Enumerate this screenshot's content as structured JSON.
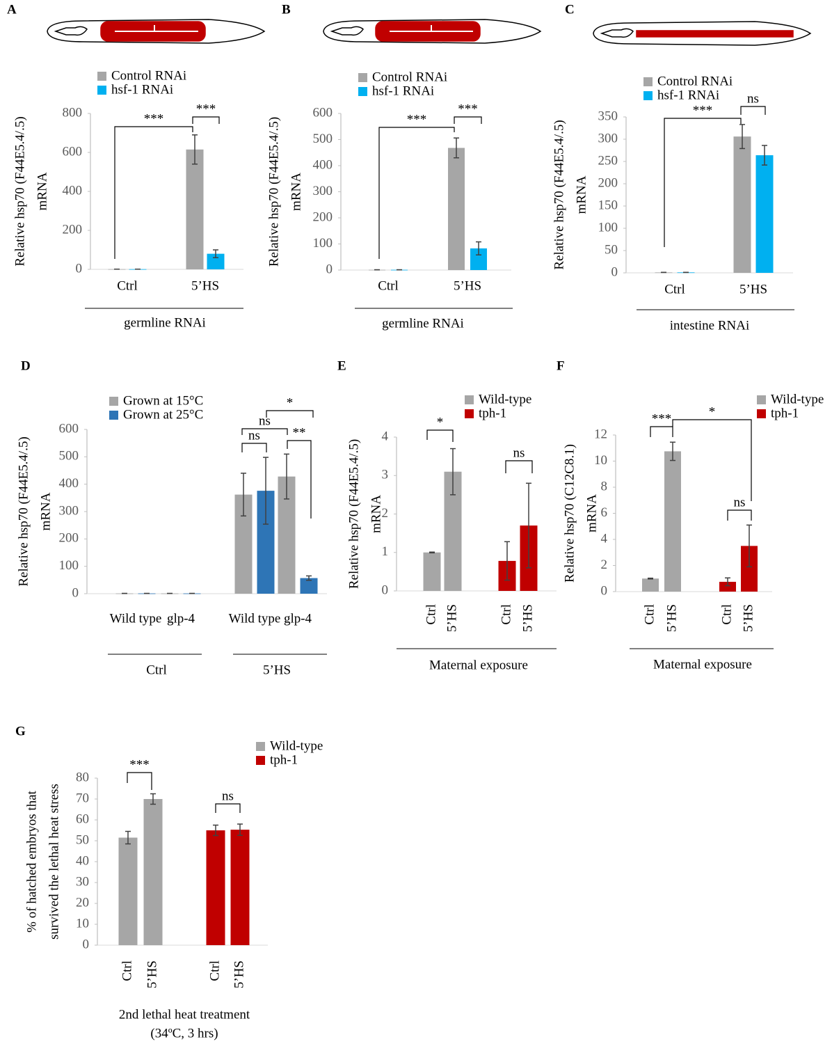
{
  "chart_data": [
    {
      "type": "bar",
      "panel": "A",
      "ylabel": [
        "Relative hsp70 (F44E5.4/.5)",
        "mRNA"
      ],
      "categories": [
        "Ctrl",
        "5’HS"
      ],
      "series": [
        {
          "name": "Control RNAi",
          "color": "#a6a6a6",
          "values": [
            1,
            615
          ],
          "errors": [
            0,
            75
          ]
        },
        {
          "name": "hsf-1 RNAi",
          "color": "#00b0f0",
          "values": [
            1,
            80
          ],
          "errors": [
            0,
            20
          ]
        }
      ],
      "ylim": [
        0,
        800
      ],
      "yticks": [
        0,
        200,
        400,
        600,
        800
      ],
      "annotations": [
        "***",
        "***"
      ],
      "groups": [
        "germline RNAi"
      ]
    },
    {
      "type": "bar",
      "panel": "B",
      "ylabel": [
        "Relative hsp70 (F44E5.4/.5)",
        "mRNA"
      ],
      "categories": [
        "Ctrl",
        "5’HS"
      ],
      "series": [
        {
          "name": "Control RNAi",
          "color": "#a6a6a6",
          "values": [
            1,
            468
          ],
          "errors": [
            0,
            38
          ]
        },
        {
          "name": "hsf-1 RNAi",
          "color": "#00b0f0",
          "values": [
            1,
            83
          ],
          "errors": [
            0,
            25
          ]
        }
      ],
      "ylim": [
        0,
        600
      ],
      "yticks": [
        0,
        100,
        200,
        300,
        400,
        500,
        600
      ],
      "annotations": [
        "***",
        "***"
      ],
      "groups": [
        "germline RNAi"
      ]
    },
    {
      "type": "bar",
      "panel": "C",
      "ylabel": [
        "Relative hsp70 (F44E5.4/.5)",
        "mRNA"
      ],
      "categories": [
        "Ctrl",
        "5’HS"
      ],
      "series": [
        {
          "name": "Control RNAi",
          "color": "#a6a6a6",
          "values": [
            1,
            306
          ],
          "errors": [
            0,
            27
          ]
        },
        {
          "name": "hsf-1 RNAi",
          "color": "#00b0f0",
          "values": [
            1,
            264
          ],
          "errors": [
            0,
            22
          ]
        }
      ],
      "ylim": [
        0,
        350
      ],
      "yticks": [
        0,
        50,
        100,
        150,
        200,
        250,
        300,
        350
      ],
      "annotations": [
        "***",
        "ns"
      ],
      "groups": [
        "intestine RNAi"
      ]
    },
    {
      "type": "bar",
      "panel": "D",
      "ylabel": [
        "Relative hsp70 (F44E5.4/.5)",
        "mRNA"
      ],
      "categories": [
        "Wild type",
        "glp-4",
        "Wild type",
        "glp-4"
      ],
      "series": [
        {
          "name": "Grown at 15°C",
          "color": "#a6a6a6",
          "values": [
            1,
            1,
            362,
            428
          ],
          "errors": [
            0,
            0,
            78,
            82
          ]
        },
        {
          "name": "Grown at 25°C",
          "color": "#2e75b6",
          "values": [
            1,
            1,
            376,
            57
          ],
          "errors": [
            0,
            0,
            122,
            8
          ]
        }
      ],
      "ylim": [
        0,
        600
      ],
      "yticks": [
        0,
        100,
        200,
        300,
        400,
        500,
        600
      ],
      "annotations": [
        "ns",
        "ns",
        "*",
        "**"
      ],
      "groups": [
        "Ctrl",
        "5’HS"
      ]
    },
    {
      "type": "bar",
      "panel": "E",
      "ylabel": [
        "Relative hsp70 (F44E5.4/.5)",
        "mRNA"
      ],
      "categories": [
        "Ctrl",
        "5’HS",
        "Ctrl",
        "5’HS"
      ],
      "series": [
        {
          "name": "Wild-type",
          "color": "#a6a6a6",
          "values": [
            1,
            3.1,
            null,
            null
          ],
          "errors": [
            0.01,
            0.6,
            null,
            null
          ]
        },
        {
          "name": "tph-1",
          "color": "#c00000",
          "values": [
            null,
            null,
            0.78,
            1.7
          ],
          "errors": [
            null,
            null,
            0.5,
            1.1
          ]
        }
      ],
      "ylim": [
        0,
        4
      ],
      "yticks": [
        0,
        1,
        2,
        3,
        4
      ],
      "annotations": [
        "*",
        "ns"
      ],
      "groups": [
        "Maternal exposure"
      ]
    },
    {
      "type": "bar",
      "panel": "F",
      "ylabel": [
        "Relative hsp70 (C12C8.1)",
        "mRNA"
      ],
      "categories": [
        "Ctrl",
        "5’HS",
        "Ctrl",
        "5’HS"
      ],
      "series": [
        {
          "name": "Wild-type",
          "color": "#a6a6a6",
          "values": [
            1,
            10.75,
            null,
            null
          ],
          "errors": [
            0.03,
            0.7,
            null,
            null
          ]
        },
        {
          "name": "tph-1",
          "color": "#c00000",
          "values": [
            null,
            null,
            0.75,
            3.5
          ],
          "errors": [
            null,
            null,
            0.3,
            1.6
          ]
        }
      ],
      "ylim": [
        0,
        12
      ],
      "yticks": [
        0,
        2,
        4,
        6,
        8,
        10,
        12
      ],
      "annotations": [
        "***",
        "*",
        "ns"
      ],
      "groups": [
        "Maternal exposure"
      ]
    },
    {
      "type": "bar",
      "panel": "G",
      "ylabel": [
        "% of hatched embryos that",
        "survived the  lethal heat stress"
      ],
      "categories": [
        "Ctrl",
        "5’HS",
        "Ctrl",
        "5’HS"
      ],
      "series": [
        {
          "name": "Wild-type",
          "color": "#a6a6a6",
          "values": [
            51.5,
            70,
            null,
            null
          ],
          "errors": [
            3,
            2.5,
            null,
            null
          ]
        },
        {
          "name": "tph-1",
          "color": "#c00000",
          "values": [
            null,
            null,
            55,
            55.3
          ],
          "errors": [
            null,
            null,
            2.5,
            2.7
          ]
        }
      ],
      "ylim": [
        0,
        80
      ],
      "yticks": [
        0,
        10,
        20,
        30,
        40,
        50,
        60,
        70,
        80
      ],
      "annotations": [
        "***",
        "ns"
      ],
      "groups": [
        "2nd lethal heat treatment",
        "(34ºC, 3 hrs)"
      ]
    }
  ]
}
